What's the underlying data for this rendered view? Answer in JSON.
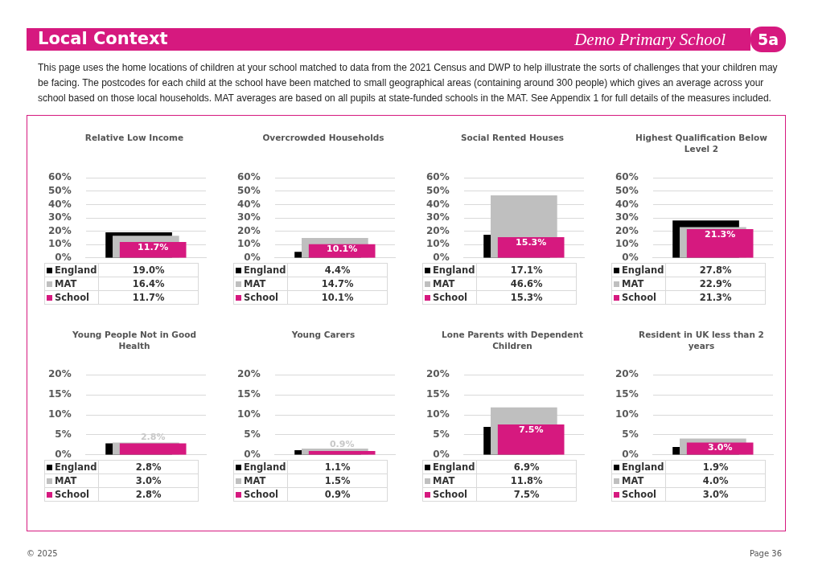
{
  "chart_data": [
    {
      "type": "other",
      "title": "Local Context",
      "subtitle": "Demo Primary School",
      "annotations": [
        "This page uses the home locations of children at your school matched to data from the 2021 Census and DWP to help illustrate the sorts of challenges that your children may be facing. The postcodes for each child at the school have been matched to small geographical areas (containing around 300 people) which gives an average across your school based on those local households. MAT averages are based on all pupils at state-funded schools in the MAT. See Appendix 1 for full details of the measures included.",
        "5a",
        "© 2025",
        "Page 36"
      ]
    },
    {
      "type": "bar",
      "title": "Relative Low Income",
      "categories": [
        null
      ],
      "ylim": [
        0,
        60
      ],
      "yticks": [
        {
          "value": 0,
          "label": "0%"
        },
        {
          "value": 10,
          "label": "10%"
        },
        {
          "value": 20,
          "label": "20%"
        },
        {
          "value": 30,
          "label": "30%"
        },
        {
          "value": 40,
          "label": "40%"
        },
        {
          "value": 50,
          "label": "50%"
        },
        {
          "value": 60,
          "label": "60%"
        }
      ],
      "grid": "y",
      "legend": "bottom",
      "tick_labels": "y",
      "series": [
        {
          "name": "England",
          "color": "#000000",
          "values": [
            19.0
          ],
          "value_labels": [
            "19.0%"
          ]
        },
        {
          "name": "MAT",
          "color": "#bfbfbf",
          "values": [
            16.4
          ],
          "value_labels": [
            "16.4%"
          ]
        },
        {
          "name": "School",
          "color": "#d6197f",
          "values": [
            11.7
          ],
          "value_labels": [
            "11.7%"
          ]
        }
      ]
    },
    {
      "type": "bar",
      "title": "Overcrowded Households",
      "categories": [
        null
      ],
      "ylim": [
        0,
        60
      ],
      "yticks": [
        {
          "value": 0,
          "label": "0%"
        },
        {
          "value": 10,
          "label": "10%"
        },
        {
          "value": 20,
          "label": "20%"
        },
        {
          "value": 30,
          "label": "30%"
        },
        {
          "value": 40,
          "label": "40%"
        },
        {
          "value": 50,
          "label": "50%"
        },
        {
          "value": 60,
          "label": "60%"
        }
      ],
      "grid": "y",
      "legend": "bottom",
      "tick_labels": "y",
      "series": [
        {
          "name": "England",
          "color": "#000000",
          "values": [
            4.4
          ],
          "value_labels": [
            "4.4%"
          ]
        },
        {
          "name": "MAT",
          "color": "#bfbfbf",
          "values": [
            14.7
          ],
          "value_labels": [
            "14.7%"
          ]
        },
        {
          "name": "School",
          "color": "#d6197f",
          "values": [
            10.1
          ],
          "value_labels": [
            "10.1%"
          ]
        }
      ]
    },
    {
      "type": "bar",
      "title": "Social Rented Houses",
      "categories": [
        null
      ],
      "ylim": [
        0,
        60
      ],
      "yticks": [
        {
          "value": 0,
          "label": "0%"
        },
        {
          "value": 10,
          "label": "10%"
        },
        {
          "value": 20,
          "label": "20%"
        },
        {
          "value": 30,
          "label": "30%"
        },
        {
          "value": 40,
          "label": "40%"
        },
        {
          "value": 50,
          "label": "50%"
        },
        {
          "value": 60,
          "label": "60%"
        }
      ],
      "grid": "y",
      "legend": "bottom",
      "tick_labels": "y",
      "series": [
        {
          "name": "England",
          "color": "#000000",
          "values": [
            17.1
          ],
          "value_labels": [
            "17.1%"
          ]
        },
        {
          "name": "MAT",
          "color": "#bfbfbf",
          "values": [
            46.6
          ],
          "value_labels": [
            "46.6%"
          ]
        },
        {
          "name": "School",
          "color": "#d6197f",
          "values": [
            15.3
          ],
          "value_labels": [
            "15.3%"
          ]
        }
      ]
    },
    {
      "type": "bar",
      "title": "Highest Qualification Below Level 2",
      "categories": [
        null
      ],
      "ylim": [
        0,
        60
      ],
      "yticks": [
        {
          "value": 0,
          "label": "0%"
        },
        {
          "value": 10,
          "label": "10%"
        },
        {
          "value": 20,
          "label": "20%"
        },
        {
          "value": 30,
          "label": "30%"
        },
        {
          "value": 40,
          "label": "40%"
        },
        {
          "value": 50,
          "label": "50%"
        },
        {
          "value": 60,
          "label": "60%"
        }
      ],
      "grid": "y",
      "legend": "bottom",
      "tick_labels": "y",
      "series": [
        {
          "name": "England",
          "color": "#000000",
          "values": [
            27.8
          ],
          "value_labels": [
            "27.8%"
          ]
        },
        {
          "name": "MAT",
          "color": "#bfbfbf",
          "values": [
            22.9
          ],
          "value_labels": [
            "22.9%"
          ]
        },
        {
          "name": "School",
          "color": "#d6197f",
          "values": [
            21.3
          ],
          "value_labels": [
            "21.3%"
          ]
        }
      ]
    },
    {
      "type": "bar",
      "title": "Young People Not in Good Health",
      "categories": [
        null
      ],
      "ylim": [
        0,
        20
      ],
      "yticks": [
        {
          "value": 0,
          "label": "0%"
        },
        {
          "value": 5,
          "label": "5%"
        },
        {
          "value": 10,
          "label": "10%"
        },
        {
          "value": 15,
          "label": "15%"
        },
        {
          "value": 20,
          "label": "20%"
        }
      ],
      "grid": "y",
      "legend": "bottom",
      "tick_labels": "y",
      "series": [
        {
          "name": "England",
          "color": "#000000",
          "values": [
            2.8
          ],
          "value_labels": [
            "2.8%"
          ]
        },
        {
          "name": "MAT",
          "color": "#bfbfbf",
          "values": [
            3.0
          ],
          "value_labels": [
            "3.0%"
          ]
        },
        {
          "name": "School",
          "color": "#d6197f",
          "values": [
            2.8
          ],
          "value_labels": [
            "2.8%"
          ]
        }
      ]
    },
    {
      "type": "bar",
      "title": "Young Carers",
      "categories": [
        null
      ],
      "ylim": [
        0,
        20
      ],
      "yticks": [
        {
          "value": 0,
          "label": "0%"
        },
        {
          "value": 5,
          "label": "5%"
        },
        {
          "value": 10,
          "label": "10%"
        },
        {
          "value": 15,
          "label": "15%"
        },
        {
          "value": 20,
          "label": "20%"
        }
      ],
      "grid": "y",
      "legend": "bottom",
      "tick_labels": "y",
      "series": [
        {
          "name": "England",
          "color": "#000000",
          "values": [
            1.1
          ],
          "value_labels": [
            "1.1%"
          ]
        },
        {
          "name": "MAT",
          "color": "#bfbfbf",
          "values": [
            1.5
          ],
          "value_labels": [
            "1.5%"
          ]
        },
        {
          "name": "School",
          "color": "#d6197f",
          "values": [
            0.9
          ],
          "value_labels": [
            "0.9%"
          ]
        }
      ]
    },
    {
      "type": "bar",
      "title": "Lone Parents with Dependent Children",
      "categories": [
        null
      ],
      "ylim": [
        0,
        20
      ],
      "yticks": [
        {
          "value": 0,
          "label": "0%"
        },
        {
          "value": 5,
          "label": "5%"
        },
        {
          "value": 10,
          "label": "10%"
        },
        {
          "value": 15,
          "label": "15%"
        },
        {
          "value": 20,
          "label": "20%"
        }
      ],
      "grid": "y",
      "legend": "bottom",
      "tick_labels": "y",
      "series": [
        {
          "name": "England",
          "color": "#000000",
          "values": [
            6.9
          ],
          "value_labels": [
            "6.9%"
          ]
        },
        {
          "name": "MAT",
          "color": "#bfbfbf",
          "values": [
            11.8
          ],
          "value_labels": [
            "11.8%"
          ]
        },
        {
          "name": "School",
          "color": "#d6197f",
          "values": [
            7.5
          ],
          "value_labels": [
            "7.5%"
          ]
        }
      ]
    },
    {
      "type": "bar",
      "title": "Resident in UK less than 2 years",
      "categories": [
        null
      ],
      "ylim": [
        0,
        20
      ],
      "yticks": [
        {
          "value": 0,
          "label": "0%"
        },
        {
          "value": 5,
          "label": "5%"
        },
        {
          "value": 10,
          "label": "10%"
        },
        {
          "value": 15,
          "label": "15%"
        },
        {
          "value": 20,
          "label": "20%"
        }
      ],
      "grid": "y",
      "legend": "bottom",
      "tick_labels": "y",
      "series": [
        {
          "name": "England",
          "color": "#000000",
          "values": [
            1.9
          ],
          "value_labels": [
            "1.9%"
          ]
        },
        {
          "name": "MAT",
          "color": "#bfbfbf",
          "values": [
            4.0
          ],
          "value_labels": [
            "4.0%"
          ]
        },
        {
          "name": "School",
          "color": "#d6197f",
          "values": [
            3.0
          ],
          "value_labels": [
            "3.0%"
          ]
        }
      ]
    }
  ]
}
